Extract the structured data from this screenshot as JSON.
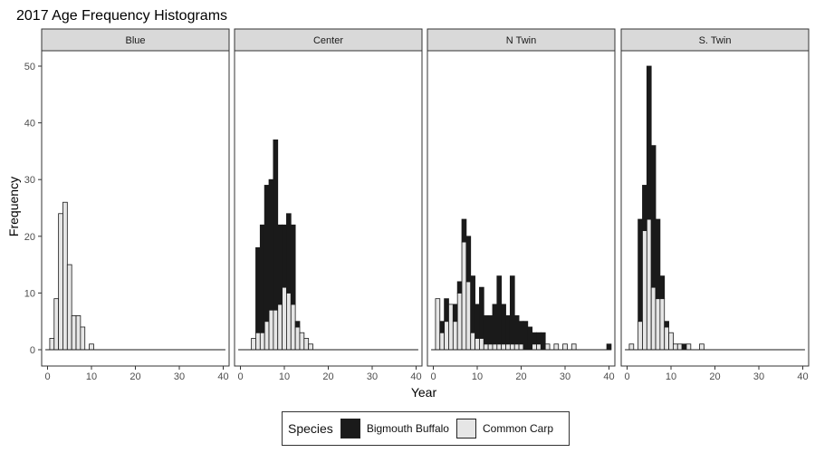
{
  "chart_data": {
    "type": "bar",
    "subtype": "stacked-histogram-facets",
    "title": "2017 Age Frequency Histograms",
    "xlabel": "Year",
    "ylabel": "Frequency",
    "xlim": [
      0,
      40
    ],
    "ylim": [
      0,
      50
    ],
    "x_ticks": [
      0,
      10,
      20,
      30,
      40
    ],
    "y_ticks": [
      0,
      10,
      20,
      30,
      40,
      50
    ],
    "grid": false,
    "legend": {
      "title": "Species",
      "position": "bottom",
      "entries": [
        {
          "name": "Bigmouth Buffalo",
          "color": "#1a1a1a"
        },
        {
          "name": "Common Carp",
          "color": "#e6e6e6"
        }
      ]
    },
    "colors": {
      "Bigmouth Buffalo": "#1a1a1a",
      "Common Carp": "#e6e6e6"
    },
    "facets": [
      {
        "label": "Blue",
        "bins": [
          {
            "x": 1,
            "carp": 2,
            "buffalo": 0
          },
          {
            "x": 2,
            "carp": 9,
            "buffalo": 0
          },
          {
            "x": 3,
            "carp": 24,
            "buffalo": 0
          },
          {
            "x": 4,
            "carp": 26,
            "buffalo": 0
          },
          {
            "x": 5,
            "carp": 15,
            "buffalo": 0
          },
          {
            "x": 6,
            "carp": 6,
            "buffalo": 0
          },
          {
            "x": 7,
            "carp": 6,
            "buffalo": 0
          },
          {
            "x": 8,
            "carp": 4,
            "buffalo": 0
          },
          {
            "x": 10,
            "carp": 1,
            "buffalo": 0
          }
        ]
      },
      {
        "label": "Center",
        "bins": [
          {
            "x": 3,
            "carp": 2,
            "buffalo": 0
          },
          {
            "x": 4,
            "carp": 3,
            "buffalo": 15
          },
          {
            "x": 5,
            "carp": 3,
            "buffalo": 19
          },
          {
            "x": 6,
            "carp": 5,
            "buffalo": 24
          },
          {
            "x": 7,
            "carp": 7,
            "buffalo": 23
          },
          {
            "x": 8,
            "carp": 7,
            "buffalo": 30
          },
          {
            "x": 9,
            "carp": 8,
            "buffalo": 14
          },
          {
            "x": 10,
            "carp": 11,
            "buffalo": 11
          },
          {
            "x": 11,
            "carp": 10,
            "buffalo": 14
          },
          {
            "x": 12,
            "carp": 8,
            "buffalo": 14
          },
          {
            "x": 13,
            "carp": 4,
            "buffalo": 1
          },
          {
            "x": 14,
            "carp": 3,
            "buffalo": 0
          },
          {
            "x": 15,
            "carp": 2,
            "buffalo": 0
          },
          {
            "x": 16,
            "carp": 1,
            "buffalo": 0
          }
        ]
      },
      {
        "label": "N Twin",
        "bins": [
          {
            "x": 1,
            "carp": 9,
            "buffalo": 0
          },
          {
            "x": 2,
            "carp": 3,
            "buffalo": 2
          },
          {
            "x": 3,
            "carp": 5,
            "buffalo": 4
          },
          {
            "x": 4,
            "carp": 8,
            "buffalo": 0
          },
          {
            "x": 5,
            "carp": 5,
            "buffalo": 3
          },
          {
            "x": 6,
            "carp": 10,
            "buffalo": 2
          },
          {
            "x": 7,
            "carp": 19,
            "buffalo": 4
          },
          {
            "x": 8,
            "carp": 12,
            "buffalo": 8
          },
          {
            "x": 9,
            "carp": 3,
            "buffalo": 10
          },
          {
            "x": 10,
            "carp": 2,
            "buffalo": 6
          },
          {
            "x": 11,
            "carp": 2,
            "buffalo": 9
          },
          {
            "x": 12,
            "carp": 1,
            "buffalo": 5
          },
          {
            "x": 13,
            "carp": 1,
            "buffalo": 5
          },
          {
            "x": 14,
            "carp": 1,
            "buffalo": 7
          },
          {
            "x": 15,
            "carp": 1,
            "buffalo": 12
          },
          {
            "x": 16,
            "carp": 1,
            "buffalo": 7
          },
          {
            "x": 17,
            "carp": 1,
            "buffalo": 5
          },
          {
            "x": 18,
            "carp": 1,
            "buffalo": 12
          },
          {
            "x": 19,
            "carp": 1,
            "buffalo": 5
          },
          {
            "x": 20,
            "carp": 1,
            "buffalo": 4
          },
          {
            "x": 21,
            "carp": 0,
            "buffalo": 5
          },
          {
            "x": 22,
            "carp": 0,
            "buffalo": 4
          },
          {
            "x": 23,
            "carp": 1,
            "buffalo": 2
          },
          {
            "x": 24,
            "carp": 1,
            "buffalo": 2
          },
          {
            "x": 25,
            "carp": 0,
            "buffalo": 3
          },
          {
            "x": 26,
            "carp": 1,
            "buffalo": 0
          },
          {
            "x": 28,
            "carp": 1,
            "buffalo": 0
          },
          {
            "x": 30,
            "carp": 1,
            "buffalo": 0
          },
          {
            "x": 32,
            "carp": 1,
            "buffalo": 0
          },
          {
            "x": 40,
            "carp": 0,
            "buffalo": 1
          }
        ]
      },
      {
        "label": "S. Twin",
        "bins": [
          {
            "x": 1,
            "carp": 1,
            "buffalo": 0
          },
          {
            "x": 3,
            "carp": 5,
            "buffalo": 18
          },
          {
            "x": 4,
            "carp": 21,
            "buffalo": 8
          },
          {
            "x": 5,
            "carp": 23,
            "buffalo": 27
          },
          {
            "x": 6,
            "carp": 11,
            "buffalo": 25
          },
          {
            "x": 7,
            "carp": 9,
            "buffalo": 14
          },
          {
            "x": 8,
            "carp": 9,
            "buffalo": 4
          },
          {
            "x": 9,
            "carp": 4,
            "buffalo": 1
          },
          {
            "x": 10,
            "carp": 3,
            "buffalo": 0
          },
          {
            "x": 11,
            "carp": 1,
            "buffalo": 0
          },
          {
            "x": 12,
            "carp": 1,
            "buffalo": 0
          },
          {
            "x": 13,
            "carp": 0,
            "buffalo": 1
          },
          {
            "x": 14,
            "carp": 1,
            "buffalo": 0
          },
          {
            "x": 17,
            "carp": 1,
            "buffalo": 0
          }
        ]
      }
    ]
  }
}
